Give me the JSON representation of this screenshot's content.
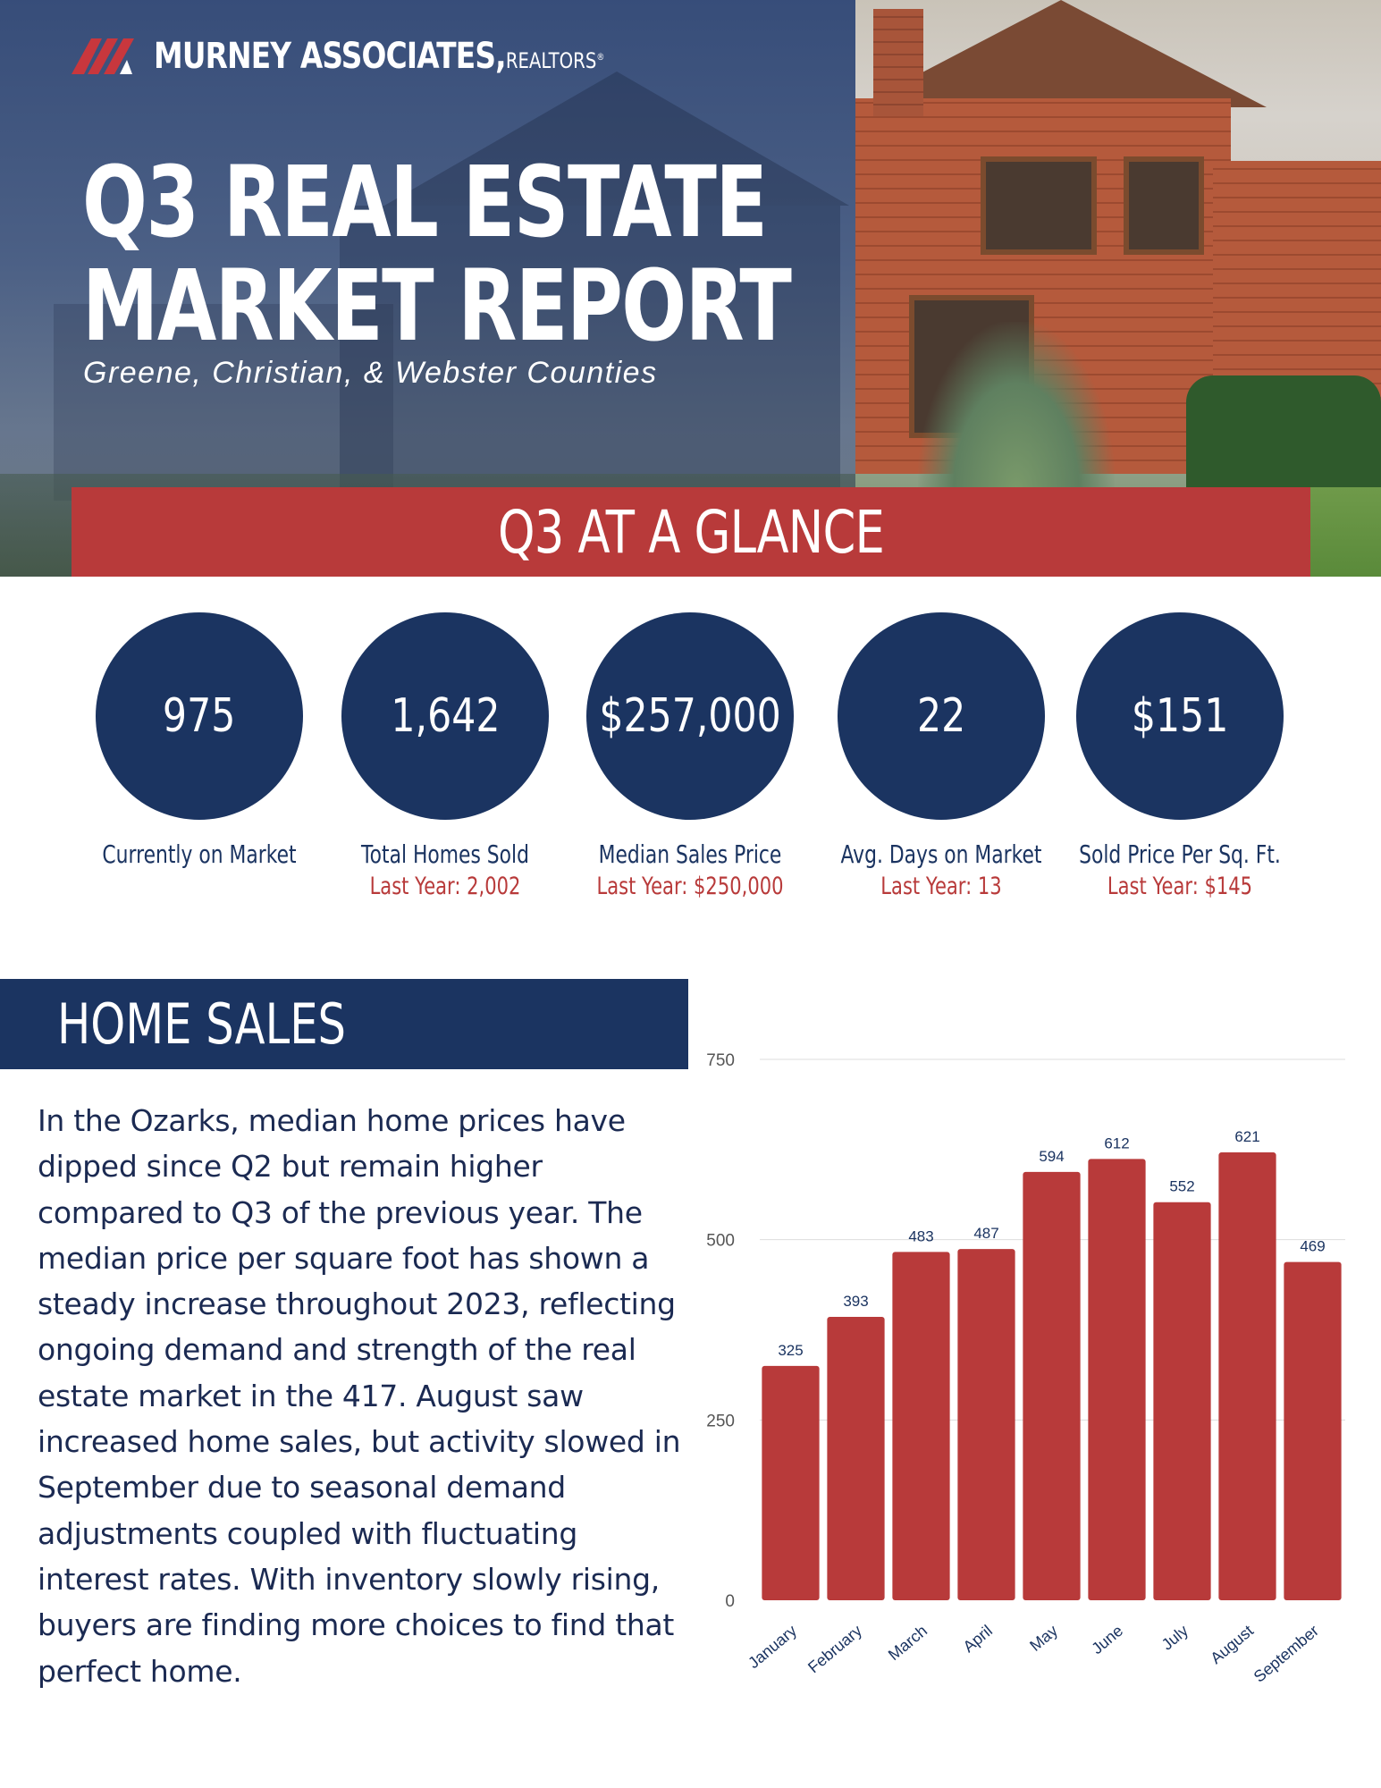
{
  "brand": {
    "name": "MURNEY ASSOCIATES,",
    "suffix": "REALTORS",
    "reg_mark": "®"
  },
  "hero": {
    "title_line1": "Q3 REAL ESTATE",
    "title_line2": "MARKET REPORT",
    "subtitle": "Greene, Christian, & Webster Counties"
  },
  "glance": {
    "heading": "Q3 AT A GLANCE",
    "stats": [
      {
        "value": "975",
        "label": "Currently on Market",
        "last_year": ""
      },
      {
        "value": "1,642",
        "label": "Total Homes Sold",
        "last_year": "Last Year: 2,002"
      },
      {
        "value": "$257,000",
        "label": "Median Sales Price",
        "last_year": "Last Year: $250,000"
      },
      {
        "value": "22",
        "label": "Avg. Days on Market",
        "last_year": "Last Year: 13"
      },
      {
        "value": "$151",
        "label": "Sold Price Per Sq. Ft.",
        "last_year": "Last Year: $145"
      }
    ]
  },
  "home_sales": {
    "heading": "HOME SALES",
    "body": "In the Ozarks, median home prices have dipped since Q2 but remain higher compared to Q3 of the previous year. The median price per square foot has shown a steady increase throughout 2023, reflecting ongoing demand and strength of the real estate market in the 417. August saw increased home sales, but activity slowed in September due to seasonal demand adjustments coupled with fluctuating interest rates. With inventory slowly rising, buyers are finding more choices to find that perfect home."
  },
  "colors": {
    "navy": "#1b3461",
    "red": "#b83a3a",
    "white": "#ffffff"
  },
  "chart_data": {
    "type": "bar",
    "categories": [
      "January",
      "February",
      "March",
      "April",
      "May",
      "June",
      "July",
      "August",
      "September"
    ],
    "values": [
      325,
      393,
      483,
      487,
      594,
      612,
      552,
      621,
      469
    ],
    "yticks": [
      0,
      250,
      500,
      750
    ],
    "ylim": [
      0,
      750
    ],
    "grid": true,
    "data_labels": true,
    "bar_color": "#b83a3a"
  }
}
